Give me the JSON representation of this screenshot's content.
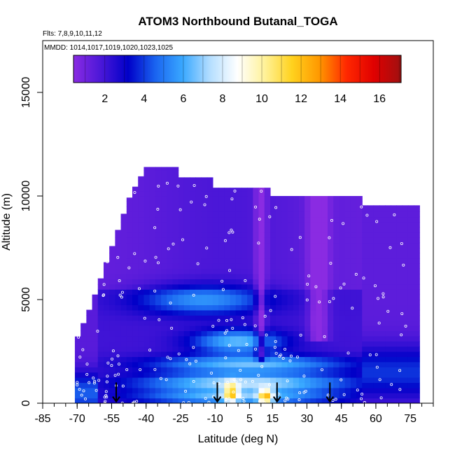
{
  "chart_data": {
    "type": "heatmap",
    "title": "ATOM3 Northbound Butanal_TOGA",
    "subtitle_flights": "Flts: 7,8,9,10,11,12",
    "subtitle_dates": "MMDD: 1014,1017,1019,1020,1023,1025",
    "xlabel": "Latitude (deg N)",
    "ylabel": "Altitude (m)",
    "xlim": [
      -85,
      85
    ],
    "ylim": [
      0,
      17500
    ],
    "x_ticks": [
      "-85",
      "-70",
      "-55",
      "-40",
      "-25",
      "-10",
      "5",
      "15",
      "30",
      "45",
      "60",
      "75"
    ],
    "x_tick_values": [
      -85,
      -70,
      -55,
      -40,
      -25,
      -10,
      5,
      15,
      30,
      45,
      60,
      75
    ],
    "y_ticks": [
      "0",
      "5000",
      "10000",
      "15000"
    ],
    "y_tick_values": [
      0,
      5000,
      10000,
      15000
    ],
    "colorbar": {
      "range": [
        0.4,
        17.1
      ],
      "ticks": [
        "2",
        "4",
        "6",
        "8",
        "10",
        "12",
        "14",
        "16"
      ],
      "tick_values": [
        2,
        4,
        6,
        8,
        10,
        12,
        14,
        16
      ],
      "colors": [
        "#8a2be2",
        "#4b17d8",
        "#0000c8",
        "#1a64f0",
        "#39a8ff",
        "#b4deff",
        "#ffffff",
        "#fff29a",
        "#ffd21e",
        "#ff9800",
        "#ff2800",
        "#e00000",
        "#a01010"
      ]
    },
    "profile_markers_lat": [
      -53,
      -9,
      17,
      40
    ],
    "grid": false
  }
}
